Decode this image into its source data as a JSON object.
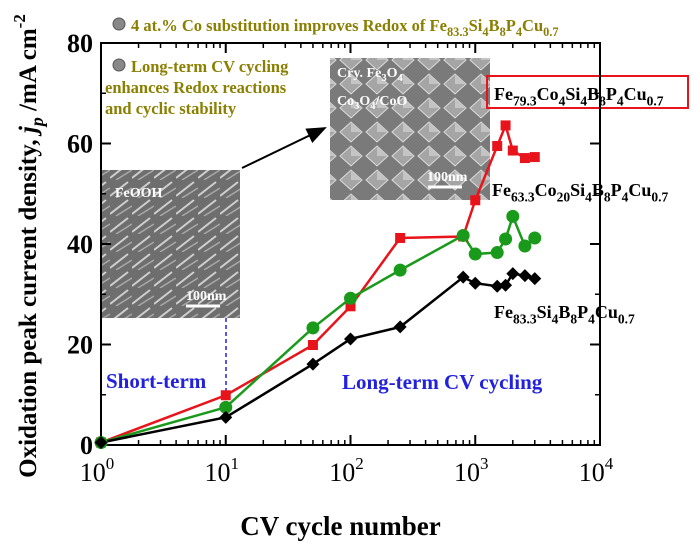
{
  "chart_data": {
    "type": "line",
    "xlabel": "CV cycle number",
    "ylabel": [
      "Oxidation peak current density, ",
      "j",
      "p",
      " /mA cm",
      "-2"
    ],
    "log_x": true,
    "xlim": [
      1,
      10000
    ],
    "ylim": [
      0,
      80
    ],
    "xticks": [
      {
        "value": 1,
        "label": "10",
        "exponent": "0"
      },
      {
        "value": 10,
        "label": "10",
        "exponent": "1"
      },
      {
        "value": 100,
        "label": "10",
        "exponent": "2"
      },
      {
        "value": 1000,
        "label": "10",
        "exponent": "3"
      },
      {
        "value": 10000,
        "label": "10",
        "exponent": "4"
      }
    ],
    "yticks": [
      0,
      20,
      40,
      60,
      80
    ],
    "x": [
      1,
      10,
      50,
      100,
      250,
      800,
      1000,
      1500,
      1750,
      2000,
      2500,
      3000
    ],
    "series": [
      {
        "name": [
          "Fe",
          "79.3",
          "Co",
          "4",
          "Si",
          "4",
          "B",
          "8",
          "P",
          "4",
          "Cu",
          "0.7"
        ],
        "color": "#e8141c",
        "marker": "square",
        "values": [
          0.5,
          9.9,
          19.9,
          27.6,
          41.2,
          41.5,
          48.7,
          59.5,
          63.6,
          58.6,
          57.1,
          57.3
        ]
      },
      {
        "name": [
          "Fe",
          "63.3",
          "Co",
          "20",
          "Si",
          "4",
          "B",
          "8",
          "P",
          "4",
          "Cu",
          "0.7"
        ],
        "color": "#1a9a1a",
        "marker": "circle",
        "values": [
          0.5,
          7.5,
          23.3,
          29.2,
          34.8,
          41.7,
          38.0,
          38.3,
          41.0,
          45.5,
          39.6,
          41.2
        ]
      },
      {
        "name": [
          "Fe",
          "83.3",
          "Si",
          "4",
          "B",
          "8",
          "P",
          "4",
          "Cu",
          "0.7"
        ],
        "color": "#000000",
        "marker": "diamond",
        "values": [
          0.5,
          5.5,
          16.1,
          21.1,
          23.5,
          33.4,
          32.2,
          31.6,
          31.8,
          34.1,
          33.7,
          33.1
        ]
      }
    ],
    "notes": [
      [
        "4 at.% Co substitution improves Redox of Fe",
        "83.3",
        "Si",
        "4",
        "B",
        "8",
        "P",
        "4",
        "Cu",
        "0.7"
      ],
      [
        "Long-term CV cycling",
        "enhances Redox reactions",
        "and cyclic stability"
      ]
    ],
    "region_labels": [
      "Short-term",
      "Long-term CV cycling"
    ],
    "insets": [
      {
        "label": [
          "FeOOH"
        ],
        "scale": "100nm"
      },
      {
        "label": [
          "Cry. Fe",
          "3",
          "O",
          "4"
        ],
        "label2": [
          "Co",
          "3",
          "O",
          "4",
          "/CoO"
        ],
        "scale": "100nm"
      }
    ]
  }
}
